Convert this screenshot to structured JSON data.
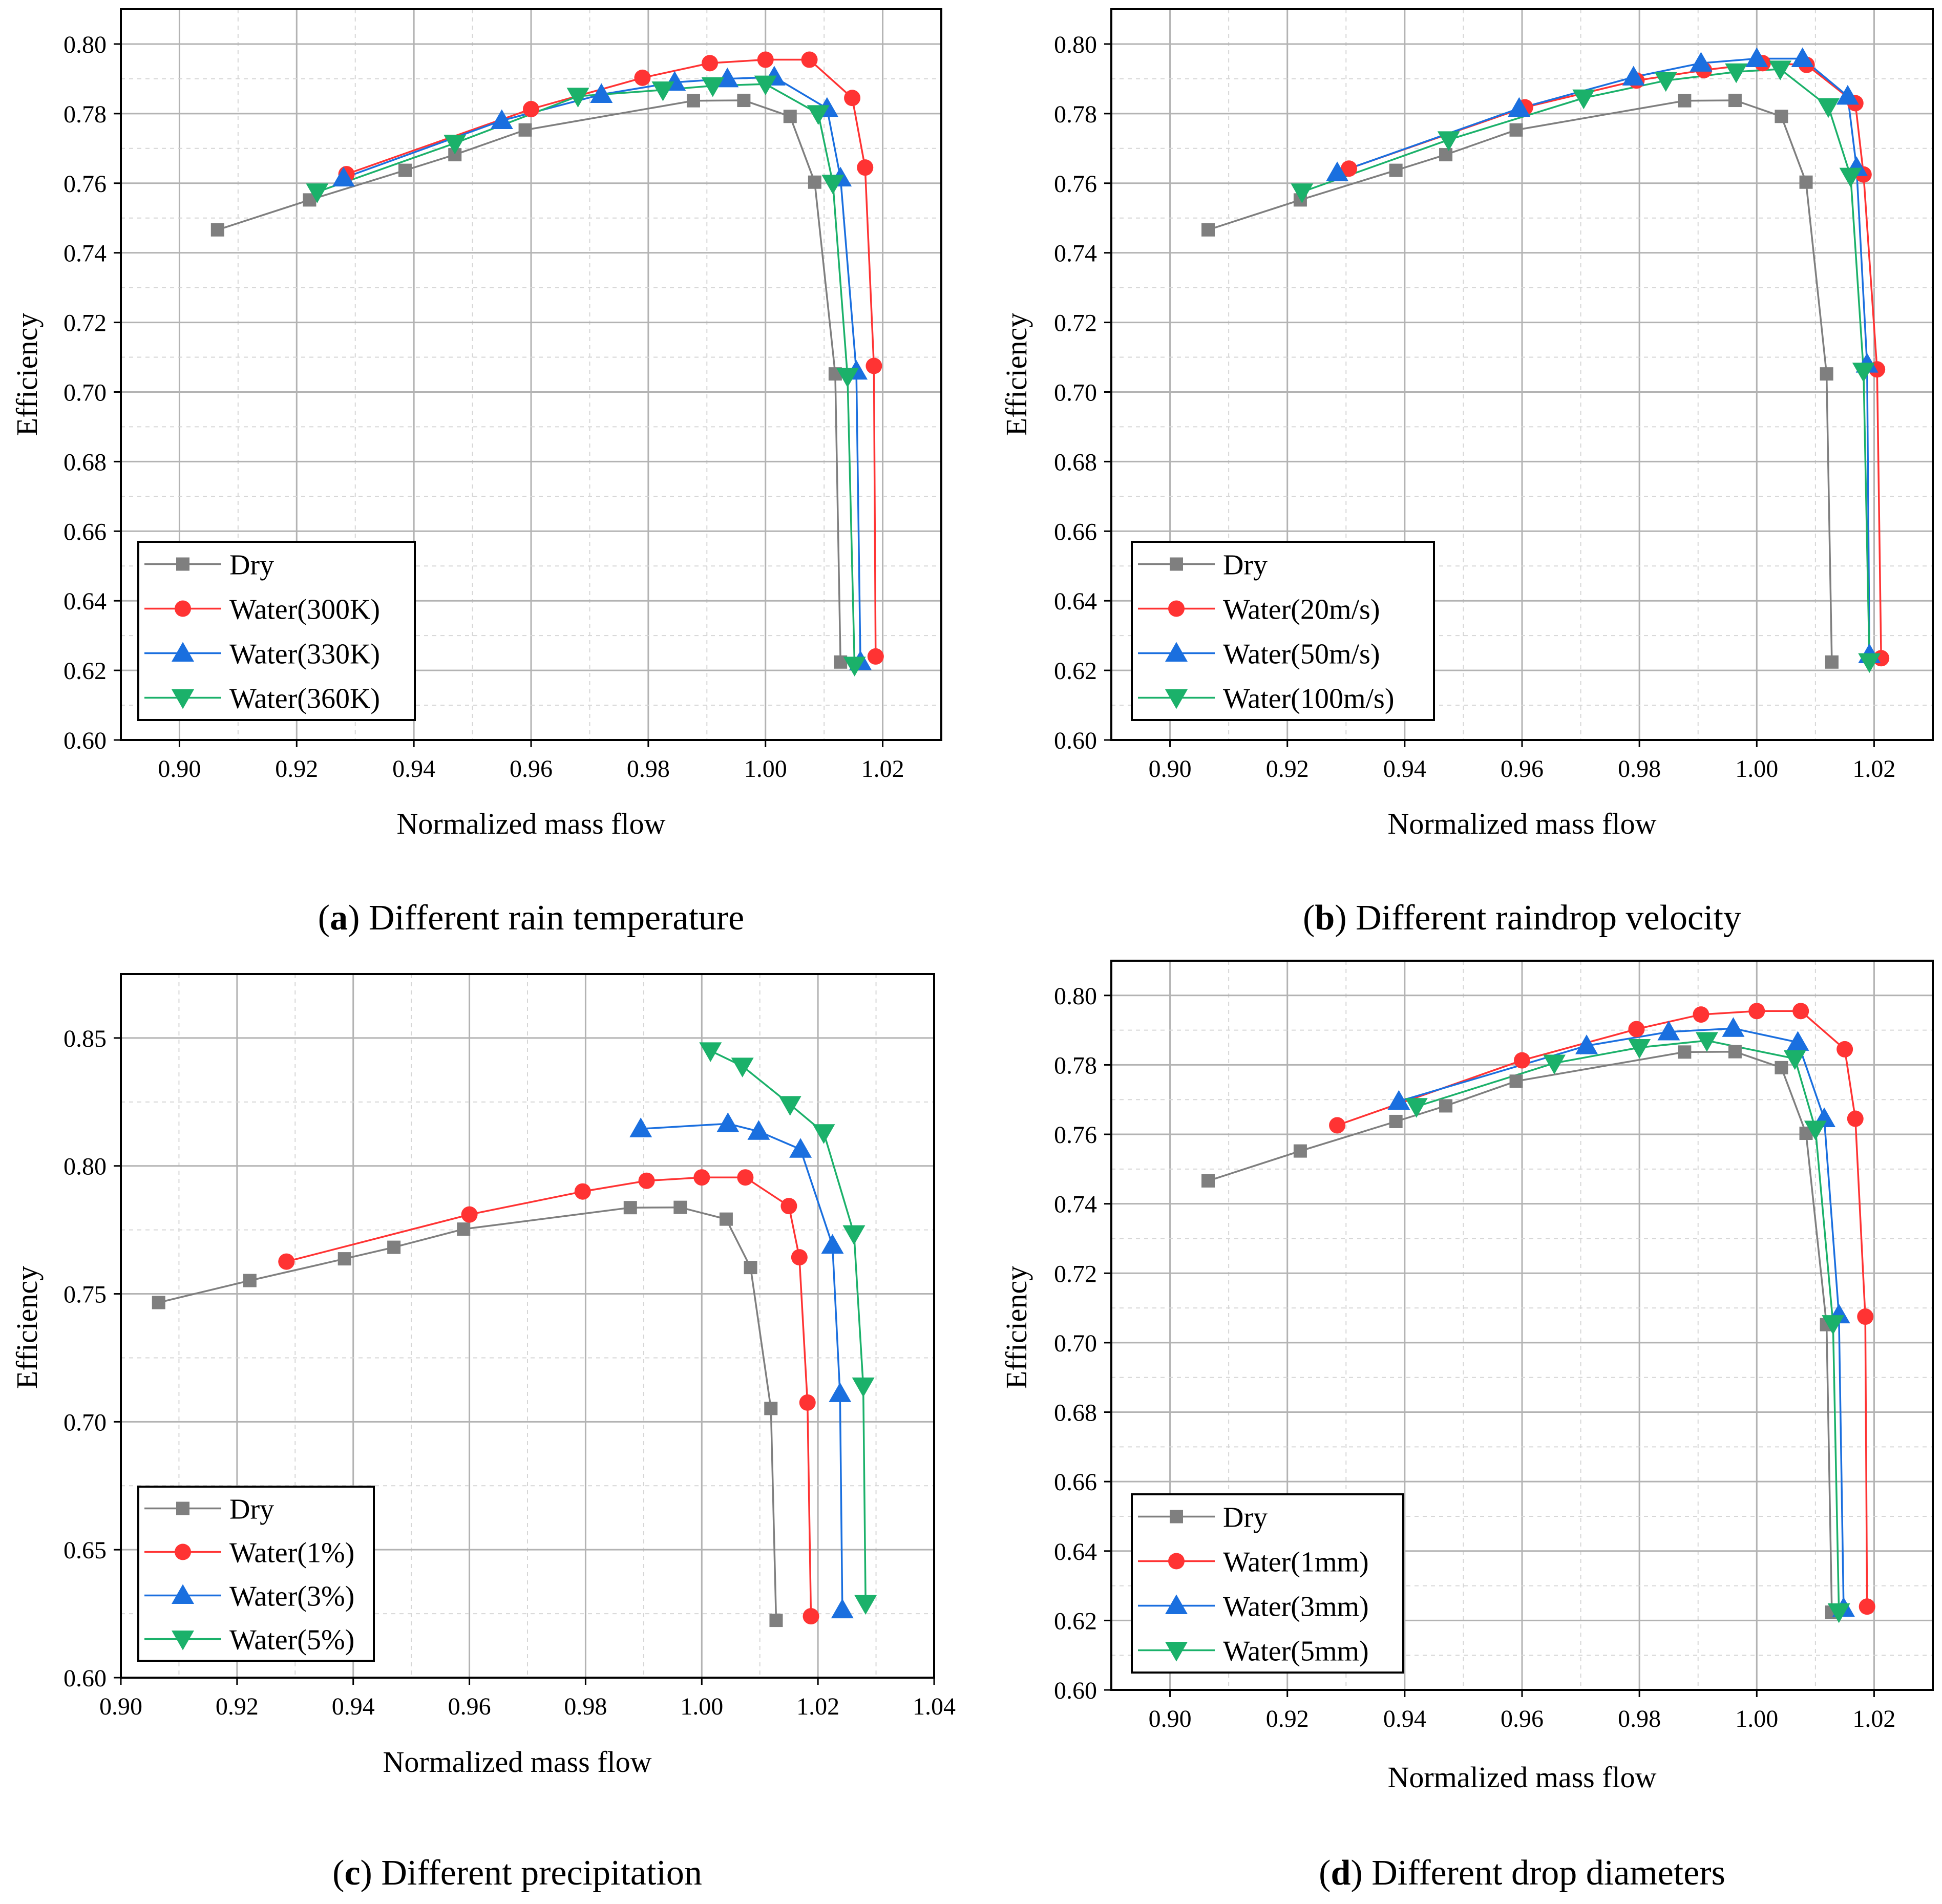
{
  "chart_data": [
    {
      "type": "line",
      "panel": "a",
      "caption_letter": "a",
      "caption_text": "Different rain temperature",
      "xlabel": "Normalized mass flow",
      "ylabel": "Efficiency",
      "xlim": [
        0.89,
        1.03
      ],
      "ylim": [
        0.6,
        0.81
      ],
      "xticks": [
        0.9,
        0.92,
        0.94,
        0.96,
        0.98,
        1.0,
        1.02
      ],
      "xtick_labels": [
        "0.90",
        "0.92",
        "0.94",
        "0.96",
        "0.98",
        "1.00",
        "1.02"
      ],
      "yticks": [
        0.6,
        0.62,
        0.64,
        0.66,
        0.68,
        0.7,
        0.72,
        0.74,
        0.76,
        0.78,
        0.8
      ],
      "ytick_labels": [
        "0.60",
        "0.62",
        "0.64",
        "0.66",
        "0.68",
        "0.70",
        "0.72",
        "0.74",
        "0.76",
        "0.78",
        "0.80"
      ],
      "legend_position": "bottom-left",
      "series": [
        {
          "name": "Dry",
          "color": "#7f7f7f",
          "marker": "square",
          "x": [
            0.9065,
            0.9222,
            0.9385,
            0.947,
            0.959,
            0.9877,
            0.9963,
            1.0042,
            1.0084,
            1.0119,
            1.0128
          ],
          "y": [
            0.7466,
            0.7552,
            0.7637,
            0.7682,
            0.7753,
            0.7837,
            0.7838,
            0.7792,
            0.7603,
            0.7052,
            0.6224
          ]
        },
        {
          "name": "Water(300K)",
          "color": "#ff3333",
          "marker": "circle",
          "x": [
            0.9285,
            0.96,
            0.979,
            0.9905,
            1.0,
            1.0075,
            1.0148,
            1.017,
            1.0185,
            1.0188
          ],
          "y": [
            0.7626,
            0.7813,
            0.7903,
            0.7945,
            0.7955,
            0.7955,
            0.7845,
            0.7645,
            0.7075,
            0.624
          ]
        },
        {
          "name": "Water(330K)",
          "color": "#1a6fdf",
          "marker": "triangle-up",
          "x": [
            0.928,
            0.955,
            0.972,
            0.9845,
            0.9935,
            1.0015,
            1.0105,
            1.0128,
            1.0155,
            1.0162
          ],
          "y": [
            0.7615,
            0.778,
            0.7855,
            0.789,
            0.79,
            0.7905,
            0.7815,
            0.7615,
            0.706,
            0.6225
          ]
        },
        {
          "name": "Water(360K)",
          "color": "#1bb16a",
          "marker": "triangle-down",
          "x": [
            0.9235,
            0.947,
            0.968,
            0.9825,
            0.991,
            1.0,
            1.009,
            1.0115,
            1.014,
            1.0152
          ],
          "y": [
            0.7575,
            0.7715,
            0.785,
            0.7868,
            0.788,
            0.7885,
            0.78,
            0.76,
            0.7045,
            0.6215
          ]
        }
      ]
    },
    {
      "type": "line",
      "panel": "b",
      "caption_letter": "b",
      "caption_text": "Different raindrop velocity",
      "xlabel": "Normalized mass flow",
      "ylabel": "Efficiency",
      "xlim": [
        0.89,
        1.03
      ],
      "ylim": [
        0.6,
        0.81
      ],
      "xticks": [
        0.9,
        0.92,
        0.94,
        0.96,
        0.98,
        1.0,
        1.02
      ],
      "xtick_labels": [
        "0.90",
        "0.92",
        "0.94",
        "0.96",
        "0.98",
        "1.00",
        "1.02"
      ],
      "yticks": [
        0.6,
        0.62,
        0.64,
        0.66,
        0.68,
        0.7,
        0.72,
        0.74,
        0.76,
        0.78,
        0.8
      ],
      "ytick_labels": [
        "0.60",
        "0.62",
        "0.64",
        "0.66",
        "0.68",
        "0.70",
        "0.72",
        "0.74",
        "0.76",
        "0.78",
        "0.80"
      ],
      "legend_position": "bottom-left",
      "series": [
        {
          "name": "Dry",
          "color": "#7f7f7f",
          "marker": "square",
          "x": [
            0.9065,
            0.9222,
            0.9385,
            0.947,
            0.959,
            0.9877,
            0.9963,
            1.0042,
            1.0084,
            1.0119,
            1.0128
          ],
          "y": [
            0.7466,
            0.7552,
            0.7637,
            0.7682,
            0.7753,
            0.7837,
            0.7838,
            0.7792,
            0.7603,
            0.7052,
            0.6224
          ]
        },
        {
          "name": "Water(20m/s)",
          "color": "#ff3333",
          "marker": "circle",
          "x": [
            0.9305,
            0.9605,
            0.9795,
            0.991,
            1.001,
            1.0085,
            1.0168,
            1.0182,
            1.0205,
            1.0212
          ],
          "y": [
            0.7642,
            0.7818,
            0.7895,
            0.7925,
            0.7945,
            0.794,
            0.783,
            0.7625,
            0.7065,
            0.6235
          ]
        },
        {
          "name": "Water(50m/s)",
          "color": "#1a6fdf",
          "marker": "triangle-up",
          "x": [
            0.9285,
            0.9595,
            0.979,
            0.9905,
            1.0,
            1.0078,
            1.0155,
            1.017,
            1.0188,
            1.0192
          ],
          "y": [
            0.763,
            0.7815,
            0.7905,
            0.7945,
            0.7958,
            0.7958,
            0.785,
            0.7645,
            0.708,
            0.6245
          ]
        },
        {
          "name": "Water(100m/s)",
          "color": "#1bb16a",
          "marker": "triangle-down",
          "x": [
            0.9225,
            0.9475,
            0.9705,
            0.9845,
            0.9965,
            1.004,
            1.0122,
            1.016,
            1.0182,
            1.0192
          ],
          "y": [
            0.7575,
            0.7725,
            0.7845,
            0.7895,
            0.792,
            0.7928,
            0.782,
            0.762,
            0.706,
            0.6225
          ]
        }
      ]
    },
    {
      "type": "line",
      "panel": "c",
      "caption_letter": "c",
      "caption_text": "Different precipitation",
      "xlabel": "Normalized mass flow",
      "ylabel": "Efficiency",
      "xlim": [
        0.9,
        1.04
      ],
      "ylim": [
        0.6,
        0.875
      ],
      "xticks": [
        0.9,
        0.92,
        0.94,
        0.96,
        0.98,
        1.0,
        1.02,
        1.04
      ],
      "xtick_labels": [
        "0.90",
        "0.92",
        "0.94",
        "0.96",
        "0.98",
        "1.00",
        "1.02",
        "1.04"
      ],
      "yticks": [
        0.6,
        0.65,
        0.7,
        0.75,
        0.8,
        0.85
      ],
      "ytick_labels": [
        "0.60",
        "0.65",
        "0.70",
        "0.75",
        "0.80",
        "0.85"
      ],
      "legend_position": "bottom-left",
      "series": [
        {
          "name": "Dry",
          "color": "#7f7f7f",
          "marker": "square",
          "x": [
            0.9065,
            0.9222,
            0.9385,
            0.947,
            0.959,
            0.9877,
            0.9963,
            1.0042,
            1.0084,
            1.0119,
            1.0128
          ],
          "y": [
            0.7466,
            0.7552,
            0.7637,
            0.7682,
            0.7753,
            0.7837,
            0.7838,
            0.7792,
            0.7603,
            0.7052,
            0.6224
          ]
        },
        {
          "name": "Water(1%)",
          "color": "#ff3333",
          "marker": "circle",
          "x": [
            0.9285,
            0.96,
            0.9795,
            0.9905,
            1.0,
            1.0075,
            1.015,
            1.0168,
            1.0182,
            1.0188
          ],
          "y": [
            0.7626,
            0.781,
            0.79,
            0.7942,
            0.7955,
            0.7955,
            0.7843,
            0.7643,
            0.7075,
            0.624
          ]
        },
        {
          "name": "Water(3%)",
          "color": "#1a6fdf",
          "marker": "triangle-up",
          "x": [
            0.9895,
            1.0045,
            1.0098,
            1.017,
            1.0225,
            1.0238,
            1.0242
          ],
          "y": [
            0.8145,
            0.8165,
            0.8135,
            0.8065,
            0.769,
            0.711,
            0.6265
          ]
        },
        {
          "name": "Water(5%)",
          "color": "#1bb16a",
          "marker": "triangle-down",
          "x": [
            1.0015,
            1.007,
            1.0152,
            1.021,
            1.0262,
            1.0278,
            1.0282
          ],
          "y": [
            0.845,
            0.839,
            0.824,
            0.813,
            0.7735,
            0.714,
            0.629
          ]
        }
      ]
    },
    {
      "type": "line",
      "panel": "d",
      "caption_letter": "d",
      "caption_text": "Different drop diameters",
      "xlabel": "Normalized mass flow",
      "ylabel": "Efficiency",
      "xlim": [
        0.89,
        1.03
      ],
      "ylim": [
        0.6,
        0.81
      ],
      "xticks": [
        0.9,
        0.92,
        0.94,
        0.96,
        0.98,
        1.0,
        1.02
      ],
      "xtick_labels": [
        "0.90",
        "0.92",
        "0.94",
        "0.96",
        "0.98",
        "1.00",
        "1.02"
      ],
      "yticks": [
        0.6,
        0.62,
        0.64,
        0.66,
        0.68,
        0.7,
        0.72,
        0.74,
        0.76,
        0.78,
        0.8
      ],
      "ytick_labels": [
        "0.60",
        "0.62",
        "0.64",
        "0.66",
        "0.68",
        "0.70",
        "0.72",
        "0.74",
        "0.76",
        "0.78",
        "0.80"
      ],
      "legend_position": "bottom-left",
      "series": [
        {
          "name": "Dry",
          "color": "#7f7f7f",
          "marker": "square",
          "x": [
            0.9065,
            0.9222,
            0.9385,
            0.947,
            0.959,
            0.9877,
            0.9963,
            1.0042,
            1.0084,
            1.0119,
            1.0128
          ],
          "y": [
            0.7466,
            0.7552,
            0.7637,
            0.7682,
            0.7753,
            0.7837,
            0.7838,
            0.7792,
            0.7603,
            0.7052,
            0.6224
          ]
        },
        {
          "name": "Water(1mm)",
          "color": "#ff3333",
          "marker": "circle",
          "x": [
            0.9285,
            0.96,
            0.9795,
            0.9905,
            1.0,
            1.0075,
            1.015,
            1.0168,
            1.0185,
            1.0188
          ],
          "y": [
            0.7626,
            0.7813,
            0.7903,
            0.7945,
            0.7955,
            0.7955,
            0.7845,
            0.7645,
            0.7075,
            0.624
          ]
        },
        {
          "name": "Water(3mm)",
          "color": "#1a6fdf",
          "marker": "triangle-up",
          "x": [
            0.939,
            0.971,
            0.985,
            0.996,
            1.007,
            1.0115,
            1.014,
            1.0148
          ],
          "y": [
            0.7695,
            0.7855,
            0.7895,
            0.7905,
            0.7865,
            0.7645,
            0.708,
            0.6235
          ]
        },
        {
          "name": "Water(5mm)",
          "color": "#1bb16a",
          "marker": "triangle-down",
          "x": [
            0.942,
            0.9655,
            0.98,
            0.9915,
            1.0065,
            1.01,
            1.013,
            1.014
          ],
          "y": [
            0.768,
            0.7805,
            0.785,
            0.787,
            0.7818,
            0.7615,
            0.7055,
            0.6225
          ]
        }
      ]
    }
  ]
}
